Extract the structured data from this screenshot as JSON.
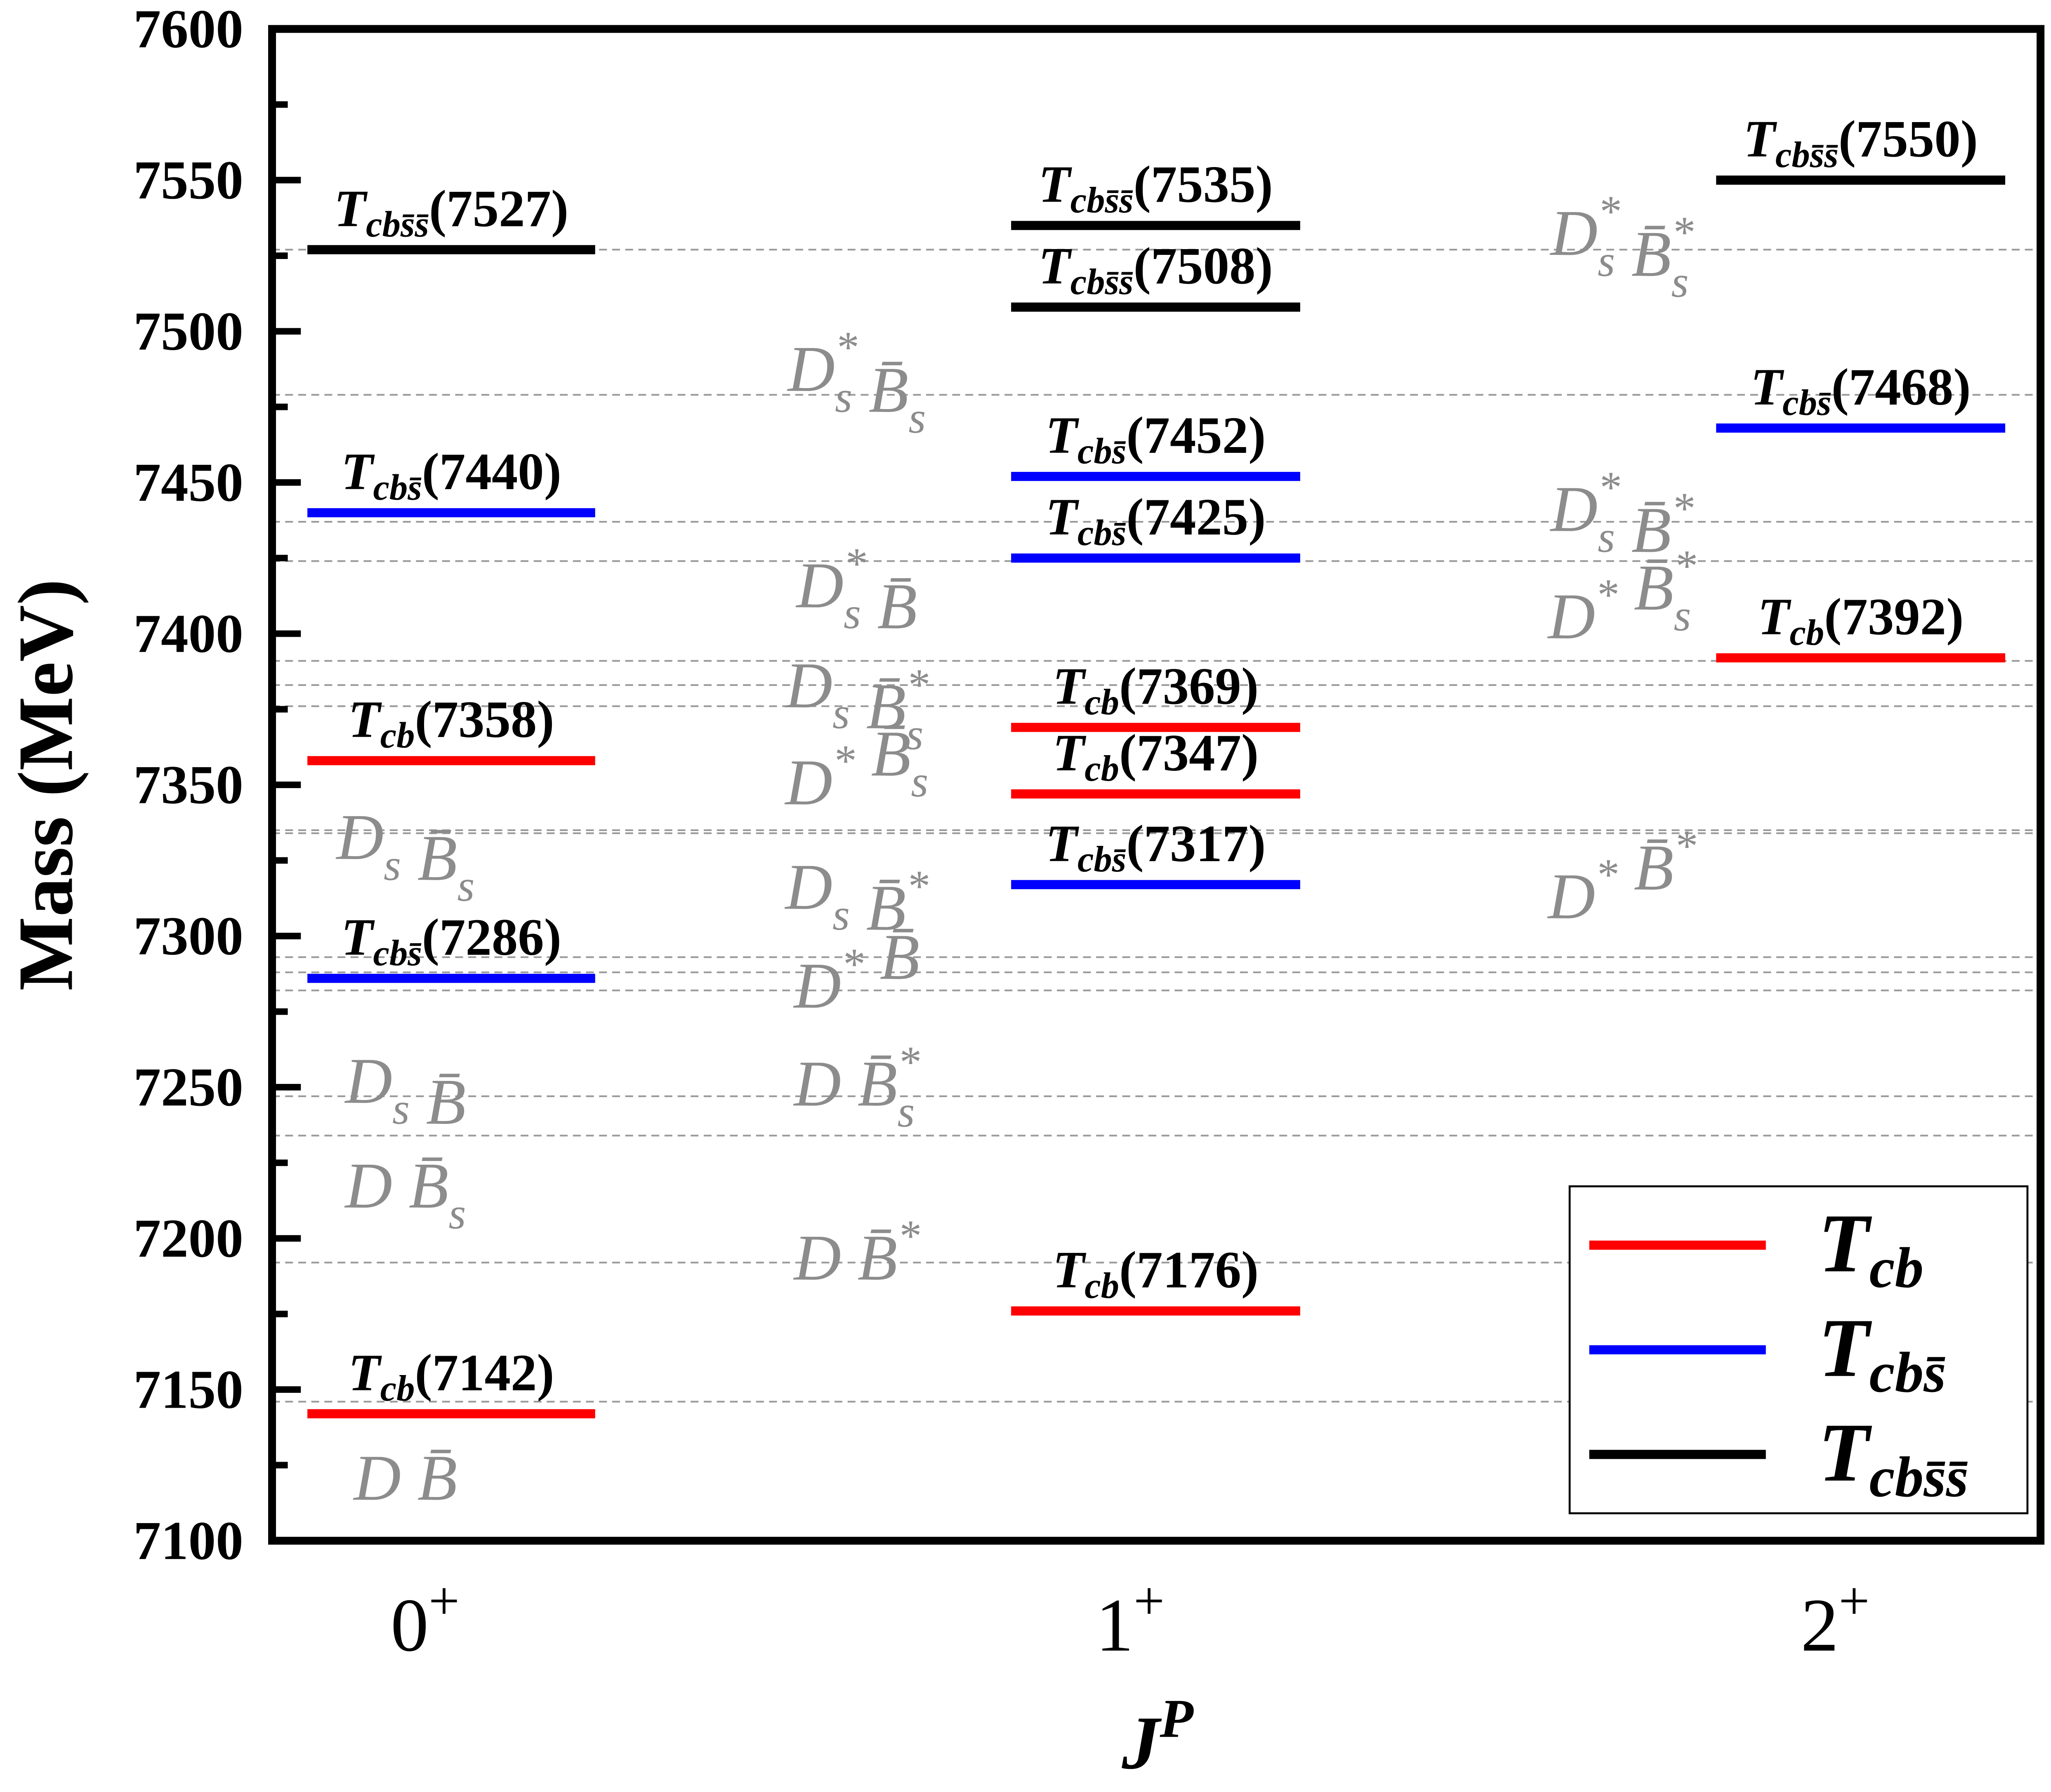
{
  "chart_data": {
    "type": "level-diagram",
    "ylabel": "Mass (MeV)",
    "xlabel": "J^P",
    "xlabel_parts": {
      "base": "J",
      "sup": "P"
    },
    "ylim": [
      7100,
      7600
    ],
    "yticks": [
      7100,
      7150,
      7200,
      7250,
      7300,
      7350,
      7400,
      7450,
      7500,
      7550,
      7600
    ],
    "categories": [
      {
        "base": "0",
        "sup": "+"
      },
      {
        "base": "1",
        "sup": "+"
      },
      {
        "base": "2",
        "sup": "+"
      }
    ],
    "colors": {
      "cb": "#ff0000",
      "cbs̄": "#0000ff",
      "cbs̄s̄": "#000000",
      "threshold": "#8c8c8c"
    },
    "legend": {
      "placement": "bottom-right",
      "entries": [
        {
          "name": "T",
          "sub": "cb",
          "key": "cb"
        },
        {
          "name": "T",
          "sub": "cbs̄",
          "key": "cbs̄"
        },
        {
          "name": "T",
          "sub": "cbs̄s̄",
          "key": "cbs̄s̄"
        }
      ]
    },
    "states": [
      {
        "col": 0,
        "flavor": "cb",
        "mass": 7142
      },
      {
        "col": 0,
        "flavor": "cbs̄",
        "mass": 7286
      },
      {
        "col": 0,
        "flavor": "cb",
        "mass": 7358
      },
      {
        "col": 0,
        "flavor": "cbs̄",
        "mass": 7440
      },
      {
        "col": 0,
        "flavor": "cbs̄s̄",
        "mass": 7527
      },
      {
        "col": 1,
        "flavor": "cb",
        "mass": 7176
      },
      {
        "col": 1,
        "flavor": "cbs̄",
        "mass": 7317
      },
      {
        "col": 1,
        "flavor": "cb",
        "mass": 7347
      },
      {
        "col": 1,
        "flavor": "cb",
        "mass": 7369
      },
      {
        "col": 1,
        "flavor": "cbs̄",
        "mass": 7425
      },
      {
        "col": 1,
        "flavor": "cbs̄",
        "mass": 7452
      },
      {
        "col": 1,
        "flavor": "cbs̄s̄",
        "mass": 7508
      },
      {
        "col": 1,
        "flavor": "cbs̄s̄",
        "mass": 7535
      },
      {
        "col": 2,
        "flavor": "cb",
        "mass": 7392
      },
      {
        "col": 2,
        "flavor": "cbs̄",
        "mass": 7468
      },
      {
        "col": 2,
        "flavor": "cbs̄s̄",
        "mass": 7550
      }
    ],
    "thresholds": [
      {
        "mass": 7146,
        "col": 0,
        "a": "D",
        "a_sub": "",
        "a_sup": "",
        "b": "B̄",
        "b_sub": "",
        "b_sup": ""
      },
      {
        "mass": 7192,
        "col": 1,
        "a": "D",
        "a_sub": "",
        "a_sup": "",
        "b": "B̄",
        "b_sub": "",
        "b_sup": "*"
      },
      {
        "mass": 7234,
        "col": 0,
        "a": "D",
        "a_sub": "",
        "a_sup": "",
        "b": "B̄",
        "b_sub": "s",
        "b_sup": ""
      },
      {
        "mass": 7247,
        "col": 0,
        "a": "D",
        "a_sub": "s",
        "a_sup": "",
        "b": "B̄",
        "b_sub": "",
        "b_sup": ""
      },
      {
        "mass": 7282,
        "col": 1,
        "a": "D",
        "a_sub": "",
        "a_sup": "",
        "b": "B̄",
        "b_sub": "s",
        "b_sup": "*"
      },
      {
        "mass": 7288,
        "col": 1,
        "a": "D",
        "a_sub": "",
        "a_sup": "*",
        "b": "B̄",
        "b_sub": "",
        "b_sup": ""
      },
      {
        "mass": 7293,
        "col": 1,
        "a": "D",
        "a_sub": "s",
        "a_sup": "",
        "b": "B̄",
        "b_sub": "",
        "b_sup": "*"
      },
      {
        "mass": 7334,
        "col": 2,
        "a": "D",
        "a_sub": "",
        "a_sup": "*",
        "b": "B̄",
        "b_sub": "",
        "b_sup": "*"
      },
      {
        "mass": 7335,
        "col": 0,
        "a": "D",
        "a_sub": "s",
        "a_sup": "",
        "b": "B̄",
        "b_sub": "s",
        "b_sup": ""
      },
      {
        "mass": 7376,
        "col": 1,
        "a": "D",
        "a_sub": "",
        "a_sup": "*",
        "b": "B̄",
        "b_sub": "s",
        "b_sup": ""
      },
      {
        "mass": 7383,
        "col": 1,
        "a": "D",
        "a_sub": "s",
        "a_sup": "",
        "b": "B̄",
        "b_sub": "s",
        "b_sup": "*"
      },
      {
        "mass": 7391,
        "col": 1,
        "a": "D",
        "a_sub": "s",
        "a_sup": "*",
        "b": "B̄",
        "b_sub": "",
        "b_sup": ""
      },
      {
        "mass": 7424,
        "col": 2,
        "a": "D",
        "a_sub": "",
        "a_sup": "*",
        "b": "B̄",
        "b_sub": "s",
        "b_sup": "*"
      },
      {
        "mass": 7437,
        "col": 2,
        "a": "D",
        "a_sub": "s",
        "a_sup": "*",
        "b": "B̄",
        "b_sub": "",
        "b_sup": "*"
      },
      {
        "mass": 7479,
        "col": 1,
        "a": "D",
        "a_sub": "s",
        "a_sup": "*",
        "b": "B̄",
        "b_sub": "s",
        "b_sup": ""
      },
      {
        "mass": 7527,
        "col": 2,
        "a": "D",
        "a_sub": "s",
        "a_sup": "*",
        "b": "B̄",
        "b_sub": "s",
        "b_sup": "*"
      }
    ]
  }
}
